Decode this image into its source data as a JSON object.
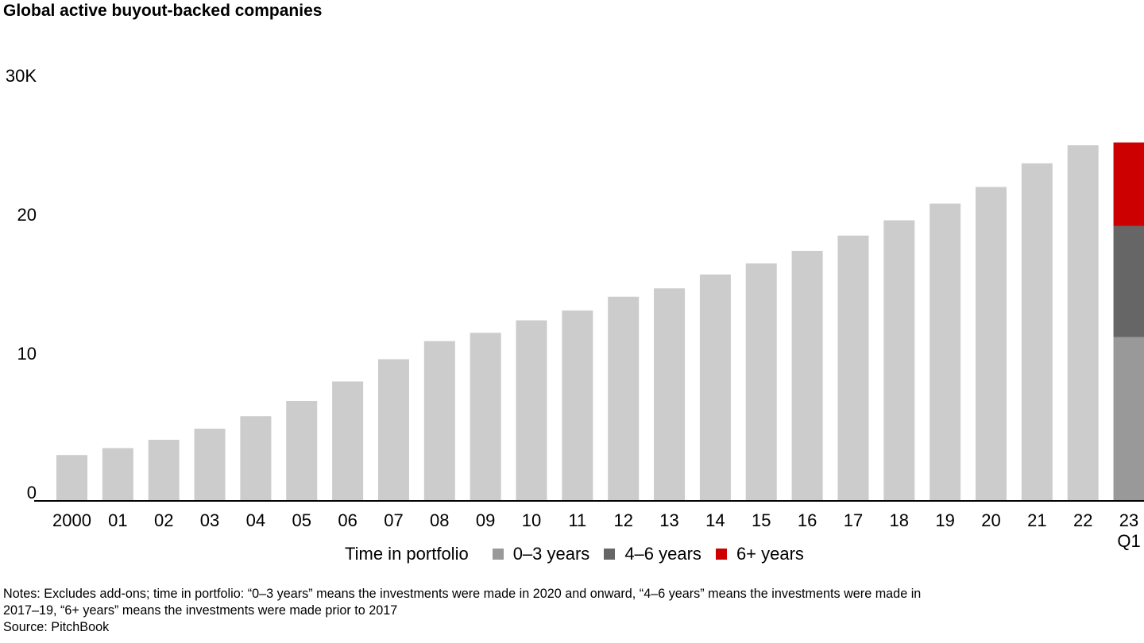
{
  "title": "Global active buyout-backed companies",
  "chart_data": {
    "type": "bar",
    "title": "Global active buyout-backed companies",
    "categories": [
      "2000",
      "01",
      "02",
      "03",
      "04",
      "05",
      "06",
      "07",
      "08",
      "09",
      "10",
      "11",
      "12",
      "13",
      "14",
      "15",
      "16",
      "17",
      "18",
      "19",
      "20",
      "21",
      "22",
      "23 Q1"
    ],
    "category_lines": [
      [
        "2000"
      ],
      [
        "01"
      ],
      [
        "02"
      ],
      [
        "03"
      ],
      [
        "04"
      ],
      [
        "05"
      ],
      [
        "06"
      ],
      [
        "07"
      ],
      [
        "08"
      ],
      [
        "09"
      ],
      [
        "10"
      ],
      [
        "11"
      ],
      [
        "12"
      ],
      [
        "13"
      ],
      [
        "14"
      ],
      [
        "15"
      ],
      [
        "16"
      ],
      [
        "17"
      ],
      [
        "18"
      ],
      [
        "19"
      ],
      [
        "20"
      ],
      [
        "21"
      ],
      [
        "22"
      ],
      [
        "23",
        "Q1"
      ]
    ],
    "y_ticks": [
      {
        "value": 0,
        "label": "0"
      },
      {
        "value": 10,
        "label": "10"
      },
      {
        "value": 20,
        "label": "20"
      },
      {
        "value": 30,
        "label": "30K"
      }
    ],
    "ylim": [
      0,
      30
    ],
    "values": [
      3.3,
      3.8,
      4.4,
      5.2,
      6.1,
      7.2,
      8.6,
      10.2,
      11.5,
      12.1,
      13.0,
      13.7,
      14.7,
      15.3,
      16.3,
      17.1,
      18.0,
      19.1,
      20.2,
      21.4,
      22.6,
      24.3,
      25.6,
      null
    ],
    "series": [
      {
        "name": "0–3 years",
        "values": [
          null,
          null,
          null,
          null,
          null,
          null,
          null,
          null,
          null,
          null,
          null,
          null,
          null,
          null,
          null,
          null,
          null,
          null,
          null,
          null,
          null,
          null,
          null,
          11.8
        ]
      },
      {
        "name": "4–6 years",
        "values": [
          null,
          null,
          null,
          null,
          null,
          null,
          null,
          null,
          null,
          null,
          null,
          null,
          null,
          null,
          null,
          null,
          null,
          null,
          null,
          null,
          null,
          null,
          null,
          8.0
        ]
      },
      {
        "name": "6+ years",
        "values": [
          null,
          null,
          null,
          null,
          null,
          null,
          null,
          null,
          null,
          null,
          null,
          null,
          null,
          null,
          null,
          null,
          null,
          null,
          null,
          null,
          null,
          null,
          null,
          6.0
        ]
      }
    ],
    "colors": {
      "total": "#cccccc",
      "0–3 years": "#999999",
      "4–6 years": "#666666",
      "6+ years": "#cc0000"
    },
    "legend": {
      "title": "Time in portfolio",
      "placement": "bottom"
    },
    "grid": false
  },
  "notes": [
    "Notes: Excludes add-ons; time in portfolio: “0–3 years” means the investments were made in 2020 and onward, “4–6 years” means the investments were made in",
    "2017–19, “6+ years” means the investments were made prior to 2017",
    "Source: PitchBook"
  ]
}
